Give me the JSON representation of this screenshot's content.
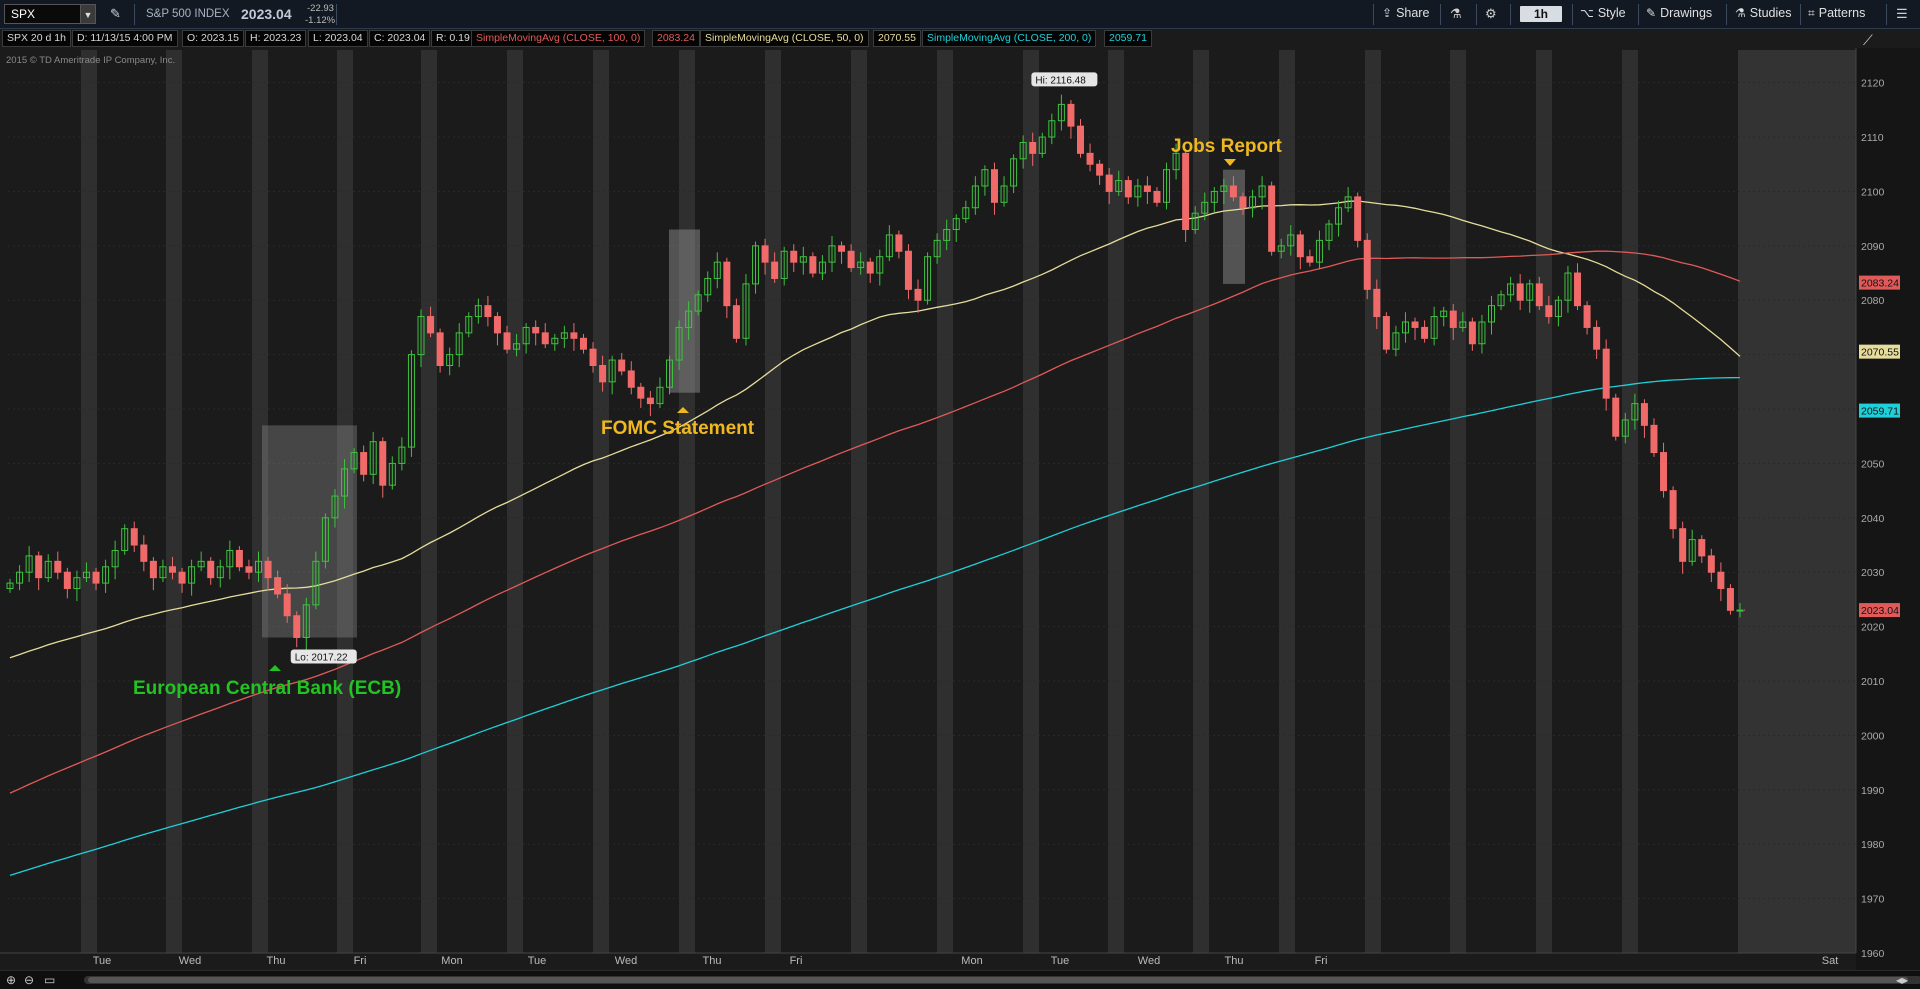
{
  "toolbar": {
    "symbol": "SPX",
    "index_name": "S&P 500 INDEX",
    "price": "2023.04",
    "change": "-22.93",
    "change_pct": "-1.12%",
    "share_label": "Share",
    "timeframe": "1h",
    "style_label": "Style",
    "drawings_label": "Drawings",
    "studies_label": "Studies",
    "patterns_label": "Patterns"
  },
  "infobar": {
    "chart_id": "SPX 20 d 1h",
    "date": "D: 11/13/15 4:00 PM",
    "open": "O: 2023.15",
    "high": "H: 2023.23",
    "low": "L: 2023.04",
    "close": "C: 2023.04",
    "range": "R: 0.19",
    "sma100_label": "SimpleMovingAvg (CLOSE, 100, 0)",
    "sma100_value": "2083.24",
    "sma50_label": "SimpleMovingAvg (CLOSE, 50, 0)",
    "sma50_value": "2070.55",
    "sma200_label": "SimpleMovingAvg (CLOSE, 200, 0)",
    "sma200_value": "2059.71"
  },
  "copyright": "2015 © TD Ameritrade IP Company, Inc.",
  "colors": {
    "up": "#3ec13e",
    "down": "#f06a6a",
    "sma100": "#e05a5a",
    "sma50": "#e6dc9c",
    "sma200": "#1fd0d8",
    "annotation_gold": "#f0b820",
    "annotation_green": "#22c322"
  },
  "chart_data": {
    "type": "candlestick",
    "y_ticks": [
      1960,
      1970,
      1980,
      1990,
      2000,
      2010,
      2020,
      2030,
      2040,
      2050,
      2060,
      2070,
      2080,
      2090,
      2100,
      2110,
      2120
    ],
    "ylim": [
      1960,
      2126
    ],
    "day_labels": [
      "Tue",
      "Wed",
      "Thu",
      "Fri",
      "Mon",
      "Tue",
      "Wed",
      "Thu",
      "Fri",
      "Mon",
      "Tue",
      "Wed",
      "Thu",
      "Fri",
      "Sat"
    ],
    "grid": true,
    "price_badges": [
      {
        "label": "2083.24",
        "value": 2083.24,
        "color": "#e05a5a"
      },
      {
        "label": "2070.55",
        "value": 2070.55,
        "color": "#e6dc9c"
      },
      {
        "label": "2059.71",
        "value": 2059.71,
        "color": "#1fd0d8"
      },
      {
        "label": "2023.04",
        "value": 2023.04,
        "color": "#e05a5a"
      }
    ],
    "hi_label": "Hi: 2116.48",
    "lo_label": "Lo: 2017.22",
    "annotations": [
      {
        "text": "European Central Bank (ECB)",
        "color": "#22c322"
      },
      {
        "text": "FOMC Statement",
        "color": "#f0b820"
      },
      {
        "text": "Jobs Report",
        "color": "#f0b820"
      }
    ],
    "closes": [
      2028,
      2030,
      2033,
      2029,
      2032,
      2030,
      2027,
      2029,
      2030,
      2028,
      2031,
      2034,
      2038,
      2035,
      2032,
      2029,
      2031,
      2030,
      2028,
      2031,
      2032,
      2029,
      2031,
      2034,
      2031,
      2030,
      2032,
      2029,
      2026,
      2022,
      2018,
      2024,
      2032,
      2040,
      2044,
      2049,
      2052,
      2048,
      2054,
      2046,
      2050,
      2053,
      2070,
      2077,
      2074,
      2068,
      2070,
      2074,
      2077,
      2079,
      2077,
      2074,
      2071,
      2072,
      2075,
      2074,
      2072,
      2073,
      2074,
      2073,
      2071,
      2068,
      2065,
      2069,
      2067,
      2064,
      2062,
      2061,
      2064,
      2069,
      2075,
      2078,
      2081,
      2084,
      2087,
      2079,
      2073,
      2083,
      2090,
      2087,
      2084,
      2089,
      2087,
      2088,
      2085,
      2087,
      2090,
      2089,
      2086,
      2087,
      2085,
      2088,
      2092,
      2089,
      2082,
      2080,
      2088,
      2091,
      2093,
      2095,
      2097,
      2101,
      2104,
      2098,
      2101,
      2106,
      2109,
      2107,
      2110,
      2113,
      2116,
      2112,
      2107,
      2105,
      2103,
      2100,
      2102,
      2099,
      2101,
      2100,
      2098,
      2104,
      2107,
      2093,
      2096,
      2098,
      2100,
      2101,
      2099,
      2097,
      2099,
      2101,
      2089,
      2090,
      2092,
      2088,
      2087,
      2091,
      2094,
      2097,
      2099,
      2091,
      2082,
      2077,
      2071,
      2074,
      2076,
      2075,
      2073,
      2077,
      2078,
      2075,
      2076,
      2072,
      2076,
      2079,
      2081,
      2083,
      2080,
      2083,
      2079,
      2077,
      2080,
      2085,
      2079,
      2075,
      2071,
      2062,
      2055,
      2058,
      2061,
      2057,
      2052,
      2045,
      2038,
      2032,
      2036,
      2033,
      2030,
      2027,
      2023,
      2023.04
    ]
  }
}
